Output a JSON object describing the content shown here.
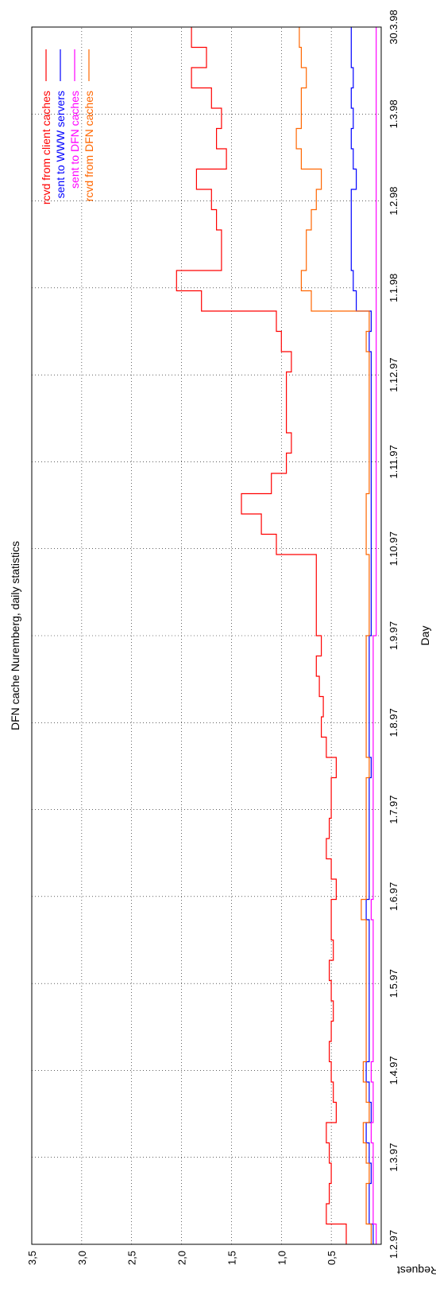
{
  "chart_data": {
    "type": "line",
    "orientation": "rotated-90",
    "title": "DFN cache Nuremberg, daily statistics",
    "xlabel": "Day",
    "ylabel": "Request",
    "y_ticks": [
      "0,5",
      "1,0",
      "1,5",
      "2,0",
      "2,5",
      "3,0",
      "3,5"
    ],
    "y_tick_values": [
      0.5,
      1.0,
      1.5,
      2.0,
      2.5,
      3.0,
      3.5
    ],
    "ylim": [
      0,
      3.5
    ],
    "x_ticks": [
      "1.2.97",
      "1.3.97",
      "1.4.97",
      "1.5.97",
      "1.6.97",
      "1.7.97",
      "1.8.97",
      "1.9.97",
      "1.10.97",
      "1.11.97",
      "1.12.97",
      "1.1.98",
      "1.2.98",
      "1.3.98",
      "30.3.98"
    ],
    "grid": true,
    "legend_position": "top-right",
    "series": [
      {
        "name": "rcvd from client caches",
        "color": "#ff0000",
        "x": [
          0,
          7,
          14,
          21,
          28,
          35,
          42,
          49,
          56,
          63,
          70,
          77,
          84,
          91,
          98,
          105,
          112,
          119,
          126,
          133,
          140,
          147,
          154,
          161,
          168,
          175,
          182,
          189,
          196,
          203,
          210,
          217,
          224,
          231,
          238,
          245,
          252,
          259,
          266,
          273,
          280,
          287,
          294,
          301,
          308,
          315,
          322,
          329,
          336,
          343,
          350,
          357,
          364,
          371,
          378,
          385,
          392,
          399,
          406,
          413
        ],
        "values": [
          0.35,
          0.55,
          0.52,
          0.5,
          0.52,
          0.55,
          0.45,
          0.48,
          0.5,
          0.52,
          0.5,
          0.48,
          0.5,
          0.52,
          0.48,
          0.5,
          0.5,
          0.45,
          0.5,
          0.55,
          0.52,
          0.5,
          0.5,
          0.45,
          0.55,
          0.6,
          0.58,
          0.62,
          0.65,
          0.6,
          0.65,
          0.65,
          0.65,
          0.65,
          1.05,
          1.2,
          1.4,
          1.1,
          0.95,
          0.9,
          0.95,
          0.95,
          0.95,
          0.9,
          1.0,
          1.05,
          1.8,
          2.05,
          1.6,
          1.6,
          1.65,
          1.7,
          1.85,
          1.55,
          1.65,
          1.6,
          1.7,
          1.9,
          1.75,
          1.9
        ]
      },
      {
        "name": "sent to WWW servers",
        "color": "#0000ff",
        "x": [
          0,
          7,
          14,
          21,
          28,
          35,
          42,
          49,
          56,
          63,
          70,
          77,
          84,
          91,
          98,
          105,
          112,
          119,
          126,
          133,
          140,
          147,
          154,
          161,
          168,
          175,
          182,
          189,
          196,
          203,
          210,
          217,
          224,
          231,
          238,
          245,
          252,
          259,
          266,
          273,
          280,
          287,
          294,
          301,
          308,
          315,
          322,
          329,
          336,
          343,
          350,
          357,
          364,
          371,
          378,
          385,
          392,
          399,
          406,
          413
        ],
        "values": [
          0.08,
          0.12,
          0.12,
          0.1,
          0.12,
          0.15,
          0.1,
          0.12,
          0.15,
          0.12,
          0.12,
          0.12,
          0.12,
          0.12,
          0.12,
          0.12,
          0.15,
          0.12,
          0.12,
          0.12,
          0.12,
          0.12,
          0.12,
          0.1,
          0.12,
          0.12,
          0.12,
          0.12,
          0.12,
          0.12,
          0.1,
          0.1,
          0.1,
          0.1,
          0.1,
          0.1,
          0.1,
          0.1,
          0.1,
          0.1,
          0.1,
          0.1,
          0.1,
          0.1,
          0.12,
          0.1,
          0.25,
          0.28,
          0.3,
          0.3,
          0.3,
          0.3,
          0.25,
          0.28,
          0.3,
          0.28,
          0.3,
          0.28,
          0.3,
          0.3
        ]
      },
      {
        "name": "sent to DFN caches",
        "color": "#ff00ff",
        "x": [
          0,
          7,
          14,
          21,
          28,
          35,
          42,
          49,
          56,
          63,
          70,
          77,
          84,
          91,
          98,
          105,
          112,
          119,
          126,
          133,
          140,
          147,
          154,
          161,
          168,
          175,
          182,
          189,
          196,
          203,
          210,
          217,
          224,
          231,
          238,
          245,
          252,
          259,
          266,
          273,
          280,
          287,
          294,
          301,
          308,
          315,
          322,
          329,
          336,
          343,
          350,
          357,
          364,
          371,
          378,
          385,
          392,
          399,
          406,
          413
        ],
        "values": [
          0.05,
          0.08,
          0.08,
          0.08,
          0.08,
          0.1,
          0.08,
          0.08,
          0.1,
          0.08,
          0.08,
          0.08,
          0.08,
          0.08,
          0.08,
          0.08,
          0.1,
          0.08,
          0.08,
          0.08,
          0.08,
          0.08,
          0.08,
          0.08,
          0.08,
          0.08,
          0.08,
          0.08,
          0.08,
          0.08,
          0.05,
          0.05,
          0.05,
          0.05,
          0.05,
          0.05,
          0.05,
          0.05,
          0.05,
          0.05,
          0.05,
          0.05,
          0.05,
          0.05,
          0.05,
          0.05,
          0.05,
          0.05,
          0.05,
          0.05,
          0.05,
          0.05,
          0.05,
          0.05,
          0.05,
          0.05,
          0.05,
          0.05,
          0.05,
          0.05
        ]
      },
      {
        "name": "rcvd from DFN caches",
        "color": "#ff6600",
        "x": [
          0,
          7,
          14,
          21,
          28,
          35,
          42,
          49,
          56,
          63,
          70,
          77,
          84,
          91,
          98,
          105,
          112,
          119,
          126,
          133,
          140,
          147,
          154,
          161,
          168,
          175,
          182,
          189,
          196,
          203,
          210,
          217,
          224,
          231,
          238,
          245,
          252,
          259,
          266,
          273,
          280,
          287,
          294,
          301,
          308,
          315,
          322,
          329,
          336,
          343,
          350,
          357,
          364,
          371,
          378,
          385,
          392,
          399,
          406,
          413
        ],
        "values": [
          0.1,
          0.15,
          0.15,
          0.12,
          0.15,
          0.18,
          0.12,
          0.15,
          0.18,
          0.15,
          0.15,
          0.15,
          0.15,
          0.15,
          0.15,
          0.15,
          0.2,
          0.15,
          0.15,
          0.15,
          0.15,
          0.15,
          0.15,
          0.12,
          0.15,
          0.15,
          0.15,
          0.15,
          0.15,
          0.15,
          0.12,
          0.12,
          0.12,
          0.12,
          0.15,
          0.15,
          0.15,
          0.12,
          0.12,
          0.12,
          0.12,
          0.12,
          0.12,
          0.12,
          0.15,
          0.12,
          0.7,
          0.8,
          0.75,
          0.75,
          0.7,
          0.65,
          0.6,
          0.8,
          0.85,
          0.8,
          0.8,
          0.75,
          0.8,
          0.82
        ]
      }
    ],
    "legend": [
      {
        "label": "rcvd from client caches",
        "color": "#ff0000"
      },
      {
        "label": "sent to WWW servers",
        "color": "#0000ff"
      },
      {
        "label": "sent to DFN caches",
        "color": "#ff00ff"
      },
      {
        "label": "rcvd from DFN caches",
        "color": "#ff6600"
      }
    ]
  }
}
